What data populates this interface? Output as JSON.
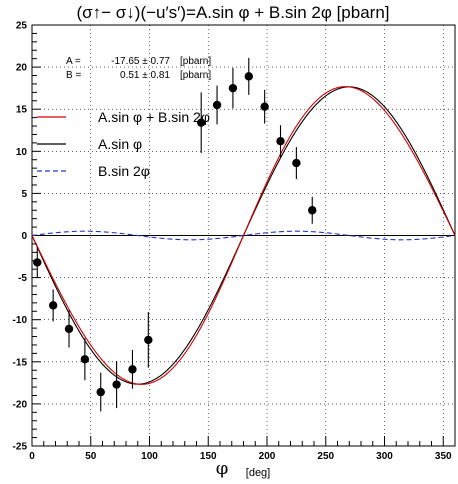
{
  "chart_data": {
    "type": "scatter",
    "title": "(σ↑− σ↓)(−u′s′)=A.sin φ + B.sin 2φ   [pbarn]",
    "xlabel": "φ",
    "xlabel_unit": "[deg]",
    "ylabel": "",
    "xlim": [
      0,
      360
    ],
    "ylim": [
      -25,
      25
    ],
    "x_ticks": [
      0,
      50,
      100,
      150,
      200,
      250,
      300,
      350
    ],
    "y_ticks": [
      -25,
      -20,
      -15,
      -10,
      -5,
      0,
      5,
      10,
      15,
      20,
      25
    ],
    "grid": true,
    "fit_params": {
      "a_label": "A =",
      "a_value": "-17.65 ± 0.77",
      "a_unit": "[pbarn]",
      "b_label": "B =",
      "b_value": "0.51 ± 0.81",
      "b_unit": "[pbarn]"
    },
    "legend": [
      {
        "label": "A.sin φ + B.sin 2φ",
        "color": "#d40000",
        "style": "solid"
      },
      {
        "label": "A.sin φ",
        "color": "#000000",
        "style": "solid"
      },
      {
        "label": "B.sin 2φ",
        "color": "#2233cc",
        "style": "dashed"
      }
    ],
    "legend_placement": "upper-left",
    "A": -17.65,
    "B": 0.51,
    "points": [
      {
        "x": 4.5,
        "y": -3.2,
        "err": 1.8
      },
      {
        "x": 18,
        "y": -8.3,
        "err": 1.9
      },
      {
        "x": 31.5,
        "y": -11.1,
        "err": 2.2
      },
      {
        "x": 45,
        "y": -14.7,
        "err": 2.5
      },
      {
        "x": 58.5,
        "y": -18.6,
        "err": 2.3
      },
      {
        "x": 72,
        "y": -17.7,
        "err": 2.8
      },
      {
        "x": 85.5,
        "y": -15.9,
        "err": 2.3
      },
      {
        "x": 99,
        "y": -12.4,
        "err": 3.3
      },
      {
        "x": 144,
        "y": 13.4,
        "err": 3.6
      },
      {
        "x": 157.5,
        "y": 15.5,
        "err": 2.3
      },
      {
        "x": 171,
        "y": 17.5,
        "err": 2.4
      },
      {
        "x": 184.5,
        "y": 18.9,
        "err": 2.2
      },
      {
        "x": 198,
        "y": 15.3,
        "err": 2.0
      },
      {
        "x": 211.5,
        "y": 11.2,
        "err": 1.9
      },
      {
        "x": 225,
        "y": 8.6,
        "err": 1.9
      },
      {
        "x": 238.5,
        "y": 3.0,
        "err": 1.6
      }
    ],
    "colors": {
      "data": "#000000",
      "grid": "#000000",
      "frame": "#000000"
    }
  }
}
